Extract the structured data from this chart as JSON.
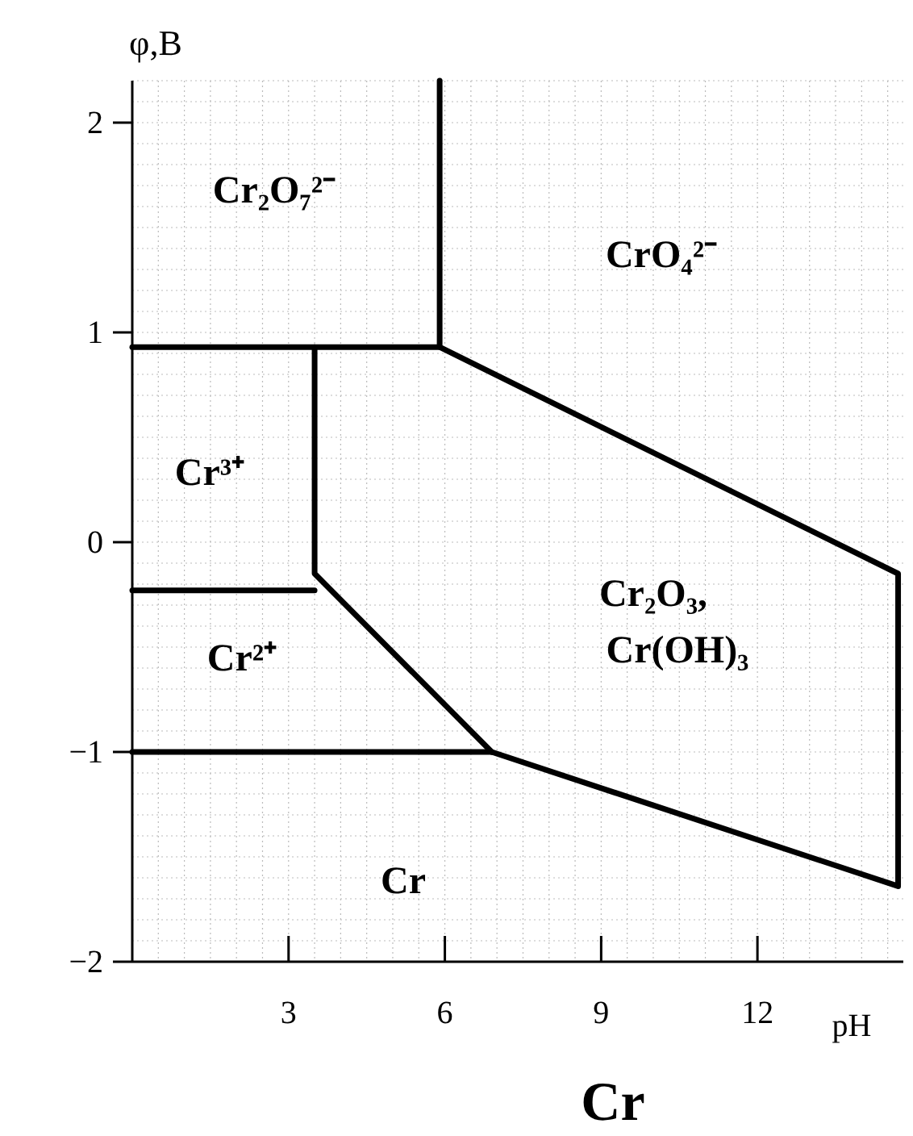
{
  "chart_data": {
    "type": "line",
    "title": "Cr",
    "xlabel": "pH",
    "ylabel": "φ,B",
    "xlim": [
      0,
      14.8
    ],
    "ylim": [
      -2,
      2.2
    ],
    "xticks": [
      3,
      6,
      9,
      12
    ],
    "yticks": [
      {
        "value": -2,
        "label": "−2"
      },
      {
        "value": -1,
        "label": "−1"
      },
      0,
      1,
      2
    ],
    "grid": true,
    "marker": "none",
    "line_style": "solid",
    "series": [
      {
        "color": "#000000",
        "x": [
          5.9,
          5.9,
          14.7,
          14.7,
          6.9,
          0
        ],
        "values": [
          2.2,
          0.93,
          -0.15,
          -1.64,
          -1,
          -1
        ]
      },
      {
        "color": "#000000",
        "x": [
          0,
          5.9
        ],
        "values": [
          0.93,
          0.93
        ]
      },
      {
        "color": "#000000",
        "x": [
          3.5,
          3.5,
          6.9
        ],
        "values": [
          0.93,
          -0.15,
          -1
        ]
      },
      {
        "color": "#000000",
        "x": [
          0,
          3.5
        ],
        "values": [
          -0.23,
          -0.23
        ]
      }
    ],
    "annotations": [
      "Cr₂O₇²⁻",
      "CrO₄²⁻",
      "Cr³⁺",
      "Cr²⁺",
      "Cr₂O₃,",
      "Cr(OH)₃",
      "Cr"
    ]
  }
}
